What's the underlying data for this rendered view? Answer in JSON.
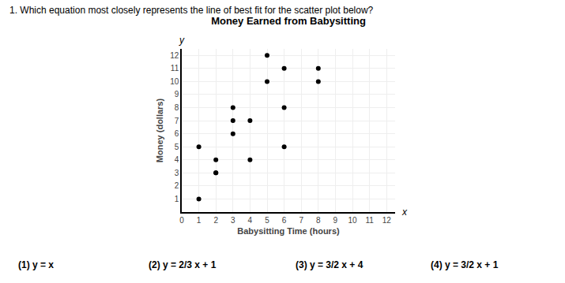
{
  "chart_data": {
    "type": "scatter",
    "title": "Money Earned from Babysitting",
    "subtitle": "1. Which equation most closely represents the line of best fit for the scatter plot below?",
    "xlabel": "Babysitting Time (hours)",
    "ylabel": "Money (dollars)",
    "x": [
      1,
      1,
      2,
      2,
      2,
      3,
      3,
      3,
      4,
      4,
      5,
      5,
      6,
      6,
      6,
      8,
      8
    ],
    "values": [
      1,
      5,
      3,
      4,
      3,
      6,
      7,
      8,
      4,
      7,
      10,
      12,
      5,
      8,
      11,
      11,
      10
    ],
    "color": "black",
    "xlim": [
      0,
      12.5
    ],
    "ylim": [
      0,
      12.5
    ],
    "xticks": [
      0,
      1,
      2,
      3,
      4,
      5,
      6,
      7,
      8,
      9,
      10,
      11,
      12
    ],
    "yticks": [
      1,
      2,
      3,
      4,
      5,
      6,
      7,
      8,
      9,
      10,
      11,
      12
    ],
    "grid": true,
    "annotations": [
      "x",
      "y",
      "(1) y = x",
      "(2) y = 2/3 x + 1",
      "(3) y = 3/2 x + 4",
      "(4) y = 3/2 x + 1"
    ]
  }
}
